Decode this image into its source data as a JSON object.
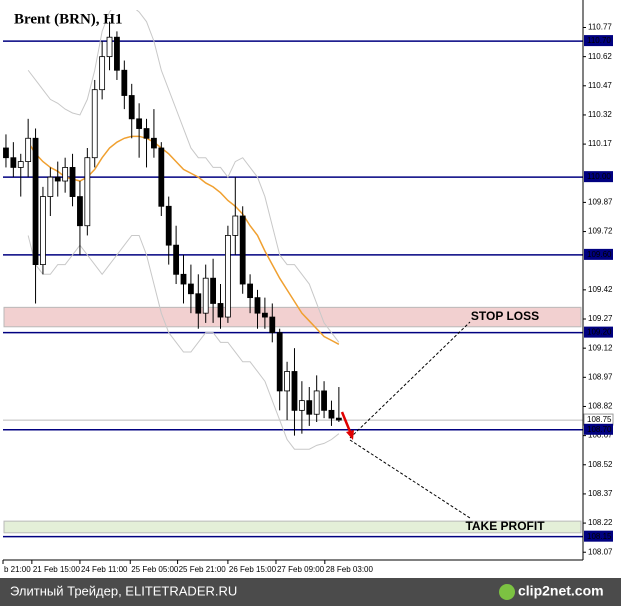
{
  "chart_data": {
    "type": "candlestick",
    "title": "Brent (BRN), H1",
    "x": [
      0,
      1,
      2,
      3,
      4,
      5,
      6,
      7,
      8,
      9,
      10,
      11,
      12,
      13,
      14,
      15,
      16,
      17,
      18,
      19,
      20,
      21,
      22,
      23,
      24,
      25,
      26,
      27,
      28,
      29,
      30,
      31,
      32,
      33,
      34,
      35,
      36,
      37,
      38,
      39,
      40,
      41,
      42,
      43,
      44,
      45
    ],
    "open": [
      110.15,
      110.1,
      110.05,
      110.08,
      110.2,
      109.55,
      109.9,
      110.0,
      109.98,
      110.05,
      109.9,
      109.75,
      110.1,
      110.45,
      110.62,
      110.72,
      110.55,
      110.42,
      110.3,
      110.25,
      110.2,
      110.15,
      109.85,
      109.65,
      109.5,
      109.45,
      109.4,
      109.3,
      109.48,
      109.35,
      109.28,
      109.7,
      109.8,
      109.45,
      109.38,
      109.3,
      109.28,
      109.2,
      108.9,
      109.0,
      108.8,
      108.85,
      108.78,
      108.9,
      108.8,
      108.76
    ],
    "high": [
      110.22,
      110.18,
      110.12,
      110.3,
      110.25,
      109.95,
      110.05,
      110.08,
      110.1,
      110.12,
      109.98,
      110.15,
      110.5,
      110.7,
      110.8,
      110.75,
      110.6,
      110.48,
      110.38,
      110.3,
      110.35,
      110.18,
      109.9,
      109.75,
      109.6,
      109.55,
      109.5,
      109.55,
      109.58,
      109.45,
      109.75,
      110.0,
      109.85,
      109.5,
      109.42,
      109.38,
      109.35,
      109.22,
      109.05,
      109.12,
      108.95,
      108.92,
      108.98,
      108.95,
      108.85,
      108.92
    ],
    "low": [
      110.05,
      110.0,
      109.9,
      110.0,
      109.35,
      109.5,
      109.8,
      109.9,
      109.92,
      109.85,
      109.6,
      109.7,
      110.05,
      110.4,
      110.55,
      110.5,
      110.35,
      110.2,
      110.1,
      110.05,
      110.1,
      109.8,
      109.55,
      109.45,
      109.35,
      109.3,
      109.22,
      109.25,
      109.25,
      109.22,
      109.25,
      109.6,
      109.4,
      109.3,
      109.22,
      109.22,
      109.15,
      108.8,
      108.75,
      108.67,
      108.68,
      108.72,
      108.74,
      108.76,
      108.72,
      108.74
    ],
    "close": [
      110.1,
      110.05,
      110.08,
      110.2,
      109.55,
      109.9,
      110.0,
      109.98,
      110.05,
      109.9,
      109.75,
      110.1,
      110.45,
      110.62,
      110.72,
      110.55,
      110.42,
      110.3,
      110.25,
      110.2,
      110.15,
      109.85,
      109.65,
      109.5,
      109.45,
      109.4,
      109.3,
      109.48,
      109.35,
      109.28,
      109.7,
      109.8,
      109.45,
      109.38,
      109.3,
      109.28,
      109.2,
      108.9,
      109.0,
      108.8,
      108.85,
      108.78,
      108.9,
      108.8,
      108.76,
      108.75
    ],
    "overlays": [
      {
        "color": "#f0a030",
        "values": [
          null,
          null,
          null,
          110.18,
          110.12,
          110.08,
          110.05,
          110.03,
          110.0,
          109.99,
          109.98,
          110.0,
          110.04,
          110.1,
          110.15,
          110.18,
          110.2,
          110.21,
          110.21,
          110.2,
          110.18,
          110.15,
          110.12,
          110.08,
          110.04,
          110.02,
          110.0,
          109.97,
          109.95,
          109.92,
          109.88,
          109.85,
          109.81,
          109.75,
          109.7,
          109.62,
          109.55,
          109.48,
          109.42,
          109.36,
          109.3,
          109.26,
          109.22,
          109.18,
          109.16,
          109.14
        ]
      },
      {
        "color": "#c8c8c8",
        "values": [
          null,
          null,
          null,
          110.55,
          110.5,
          110.45,
          110.4,
          110.38,
          110.35,
          110.33,
          110.32,
          110.4,
          110.55,
          110.75,
          110.85,
          110.9,
          110.9,
          110.88,
          110.85,
          110.8,
          110.7,
          110.55,
          110.45,
          110.35,
          110.25,
          110.15,
          110.1,
          110.1,
          110.05,
          110.05,
          110.0,
          110.08,
          110.1,
          110.05,
          110.0,
          109.9,
          109.75,
          109.6,
          109.55,
          109.55,
          109.5,
          109.45,
          109.35,
          109.25,
          109.2,
          109.15
        ]
      },
      {
        "color": "#c8c8c8",
        "values": [
          null,
          null,
          null,
          109.7,
          109.55,
          109.5,
          109.5,
          109.55,
          109.55,
          109.6,
          109.65,
          109.6,
          109.55,
          109.5,
          109.55,
          109.6,
          109.65,
          109.7,
          109.7,
          109.6,
          109.45,
          109.3,
          109.2,
          109.15,
          109.1,
          109.1,
          109.15,
          109.2,
          109.2,
          109.15,
          109.15,
          109.1,
          109.05,
          109.05,
          109.0,
          108.95,
          108.85,
          108.75,
          108.65,
          108.6,
          108.6,
          108.6,
          108.62,
          108.63,
          108.65,
          108.68
        ]
      }
    ],
    "levels": [
      {
        "value": 110.7,
        "label": "110.70"
      },
      {
        "value": 110,
        "label": "110.00"
      },
      {
        "value": 109.6,
        "label": "109.60"
      },
      {
        "value": 109.2,
        "label": "109.20"
      },
      {
        "value": 108.7,
        "label": "108.70"
      },
      {
        "value": 108.15,
        "label": "108.15"
      }
    ],
    "level_color": "#000080",
    "last_price": 108.75,
    "zones": [
      {
        "label": "STOP LOSS",
        "from": 109.23,
        "to": 109.33,
        "color": "#f2d0d0"
      },
      {
        "label": "TAKE PROFIT",
        "from": 108.17,
        "to": 108.23,
        "color": "#e4efd8"
      }
    ],
    "xlim": [
      -0.4,
      78
    ],
    "xticks": [
      {
        "value": -0.4,
        "label": "b 21:00"
      },
      {
        "value": 3.5,
        "label": "21 Feb 15:00"
      },
      {
        "value": 10,
        "label": "24 Feb 11:00"
      },
      {
        "value": 16.8,
        "label": "25 Feb 05:00"
      },
      {
        "value": 23.2,
        "label": "25 Feb 21:00"
      },
      {
        "value": 30,
        "label": "26 Feb 15:00"
      },
      {
        "value": 36.5,
        "label": "27 Feb 09:00"
      },
      {
        "value": 43.1,
        "label": "28 Feb 03:00"
      }
    ],
    "ylim": [
      108.03,
      110.86
    ],
    "yticks": [
      110.77,
      110.62,
      110.47,
      110.32,
      110.17,
      109.87,
      109.72,
      109.42,
      109.27,
      109.12,
      108.97,
      108.82,
      108.67,
      108.52,
      108.37,
      108.22,
      108.07
    ]
  },
  "footer": {
    "source": "Элитный Трейдер, ELITETRADER.RU",
    "watermark": "clip2net.com"
  }
}
